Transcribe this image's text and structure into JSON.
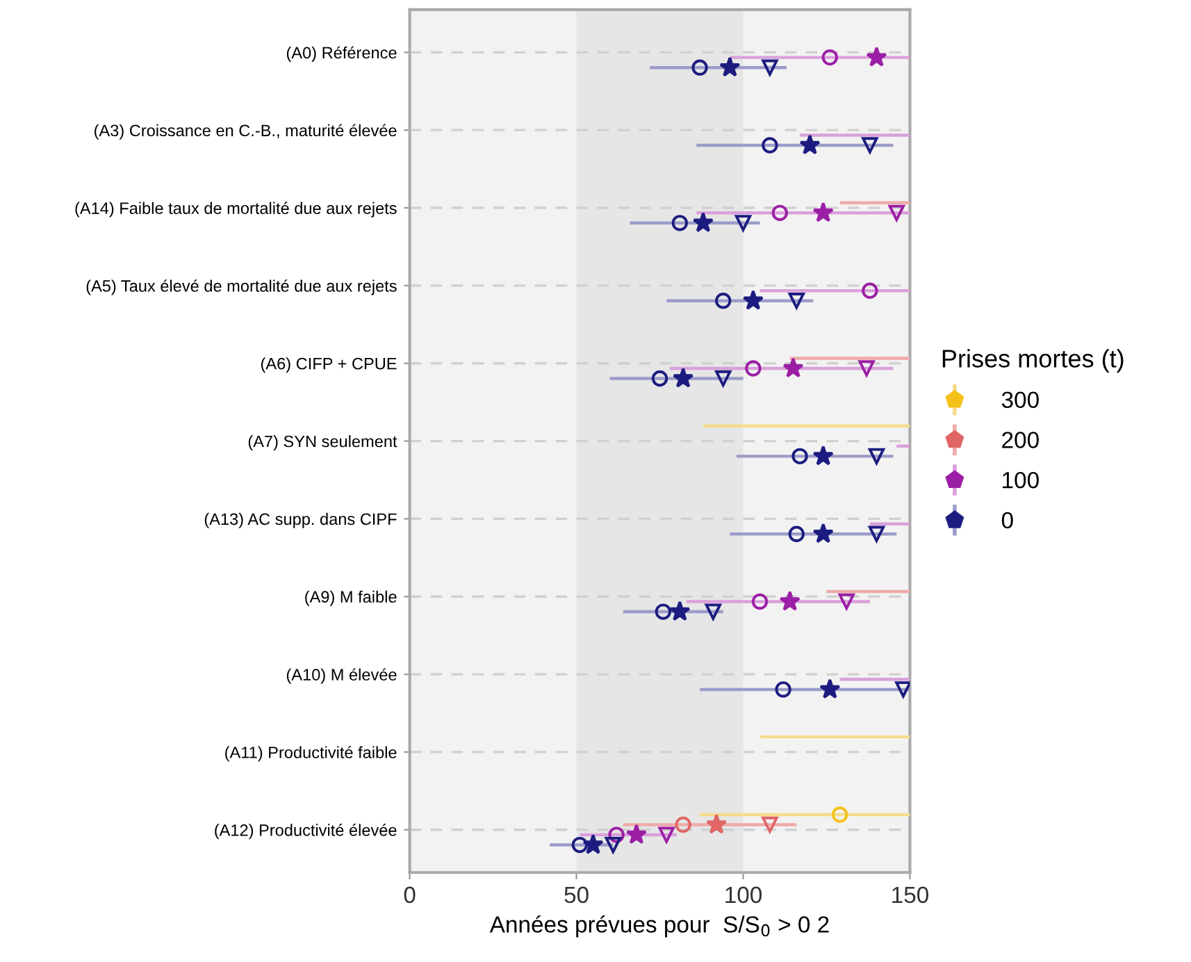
{
  "chart_data": {
    "type": "bar",
    "orientation": "horizontal",
    "categories": [
      "(A0) Référence",
      "(A3) Croissance en C.-B., maturité élevée",
      "(A14) Faible taux de mortalité due aux rejets",
      "(A5) Taux élevé de mortalité due aux rejets",
      "(A6) CIFP + CPUE",
      "(A7) SYN seulement",
      "(A13) AC supp. dans CIPF",
      "(A9) M faible",
      "(A10) M élevée",
      "(A11) Productivité faible",
      "(A12) Productivité élevée"
    ],
    "xlabel": "Années prévues pour  S/S$_{0}$ > 0 2",
    "legend_title": "Prises mortes (t)",
    "xlim": [
      0,
      150
    ],
    "xticks": [
      0,
      50,
      100,
      150
    ],
    "bands": [
      {
        "axis": "x",
        "from": 50,
        "to": 100,
        "color": "#e6e6e6"
      }
    ],
    "grid": "y",
    "legend": "right",
    "series": [
      {
        "name": "300",
        "color": "#f5dc8c",
        "base": [
          null,
          null,
          null,
          null,
          null,
          88,
          null,
          null,
          null,
          105,
          87
        ],
        "values": [
          null,
          null,
          null,
          null,
          null,
          62,
          null,
          null,
          null,
          45,
          63
        ]
      },
      {
        "type": "scatter",
        "marker": "circle",
        "color": "#f5c21b",
        "values": [
          null,
          null,
          null,
          null,
          null,
          null,
          null,
          null,
          null,
          null,
          129
        ]
      },
      {
        "name": "200",
        "color": "#eeaaa9",
        "base": [
          null,
          null,
          129,
          null,
          114,
          null,
          null,
          125,
          null,
          null,
          64
        ],
        "values": [
          null,
          null,
          21,
          null,
          36,
          null,
          null,
          25,
          null,
          null,
          52
        ]
      },
      {
        "type": "scatter",
        "marker": "circle",
        "color": "#e06666",
        "values": [
          null,
          null,
          null,
          null,
          null,
          null,
          null,
          null,
          null,
          null,
          82
        ]
      },
      {
        "type": "scatter",
        "marker": "star",
        "color": "#e06666",
        "values": [
          null,
          null,
          null,
          null,
          null,
          null,
          null,
          null,
          null,
          null,
          92
        ]
      },
      {
        "type": "scatter",
        "marker": "triangle",
        "color": "#e06666",
        "values": [
          null,
          null,
          null,
          null,
          null,
          null,
          null,
          null,
          null,
          null,
          108
        ]
      },
      {
        "name": "100",
        "color": "#d9a0db",
        "base": [
          96,
          117,
          86,
          105,
          78,
          146,
          138,
          83,
          129,
          null,
          51
        ],
        "values": [
          54,
          33,
          64,
          45,
          67,
          4,
          12,
          55,
          21,
          null,
          29
        ]
      },
      {
        "type": "scatter",
        "marker": "circle",
        "color": "#9b1fa5",
        "values": [
          126,
          null,
          111,
          138,
          103,
          null,
          null,
          105,
          null,
          null,
          62
        ]
      },
      {
        "type": "scatter",
        "marker": "star",
        "color": "#9b1fa5",
        "values": [
          140,
          null,
          124,
          null,
          115,
          null,
          null,
          114,
          null,
          null,
          68
        ]
      },
      {
        "type": "scatter",
        "marker": "triangle",
        "color": "#9b1fa5",
        "values": [
          null,
          null,
          146,
          null,
          137,
          null,
          null,
          131,
          null,
          null,
          77
        ]
      },
      {
        "name": "0",
        "color": "#9c9cc9",
        "base": [
          72,
          86,
          66,
          77,
          60,
          98,
          96,
          64,
          87,
          null,
          42
        ],
        "values": [
          41,
          59,
          39,
          44,
          40,
          47,
          50,
          30,
          63,
          null,
          19
        ]
      },
      {
        "type": "scatter",
        "marker": "circle",
        "color": "#1c1c80",
        "values": [
          87,
          108,
          81,
          94,
          75,
          117,
          116,
          76,
          112,
          null,
          51
        ]
      },
      {
        "type": "scatter",
        "marker": "star",
        "color": "#1c1c80",
        "values": [
          96,
          120,
          88,
          103,
          82,
          124,
          124,
          81,
          126,
          null,
          55
        ]
      },
      {
        "type": "scatter",
        "marker": "triangle",
        "color": "#1c1c80",
        "values": [
          108,
          138,
          100,
          116,
          94,
          140,
          140,
          91,
          148,
          null,
          61
        ]
      }
    ]
  }
}
